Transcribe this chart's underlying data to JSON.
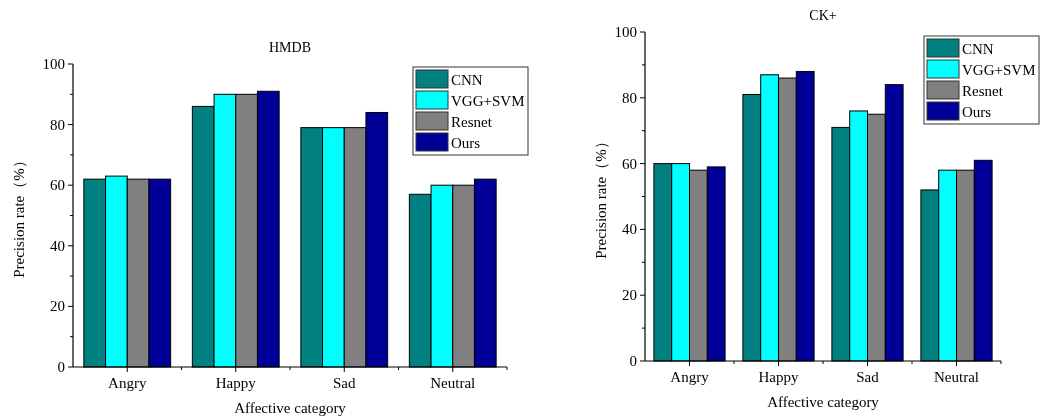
{
  "chart_data": [
    {
      "type": "bar",
      "title": "HMDB",
      "xlabel": "Affective category",
      "ylabel": "Precision rate（%）",
      "categories": [
        "Angry",
        "Happy",
        "Sad",
        "Neutral"
      ],
      "ylim": [
        0,
        100
      ],
      "yticks": [
        0,
        20,
        40,
        60,
        80,
        100
      ],
      "legend": "top right",
      "grid": false,
      "series": [
        {
          "name": "CNN",
          "color": "#008080",
          "values": [
            62,
            86,
            79,
            57
          ]
        },
        {
          "name": "VGG+SVM",
          "color": "#00ffff",
          "values": [
            63,
            90,
            79,
            60
          ]
        },
        {
          "name": "Resnet",
          "color": "#808080",
          "values": [
            62,
            90,
            79,
            60
          ]
        },
        {
          "name": "Ours",
          "color": "#000099",
          "values": [
            62,
            91,
            84,
            62
          ]
        }
      ]
    },
    {
      "type": "bar",
      "title": "CK+",
      "xlabel": "Affective category",
      "ylabel": "Precision rate（%）",
      "categories": [
        "Angry",
        "Happy",
        "Sad",
        "Neutral"
      ],
      "ylim": [
        0,
        100
      ],
      "yticks": [
        0,
        20,
        40,
        60,
        80,
        100
      ],
      "legend": "top right",
      "grid": false,
      "series": [
        {
          "name": "CNN",
          "color": "#008080",
          "values": [
            60,
            81,
            71,
            52
          ]
        },
        {
          "name": "VGG+SVM",
          "color": "#00ffff",
          "values": [
            60,
            87,
            76,
            58
          ]
        },
        {
          "name": "Resnet",
          "color": "#808080",
          "values": [
            58,
            86,
            75,
            58
          ]
        },
        {
          "name": "Ours",
          "color": "#000099",
          "values": [
            59,
            88,
            84,
            61
          ]
        }
      ]
    }
  ]
}
